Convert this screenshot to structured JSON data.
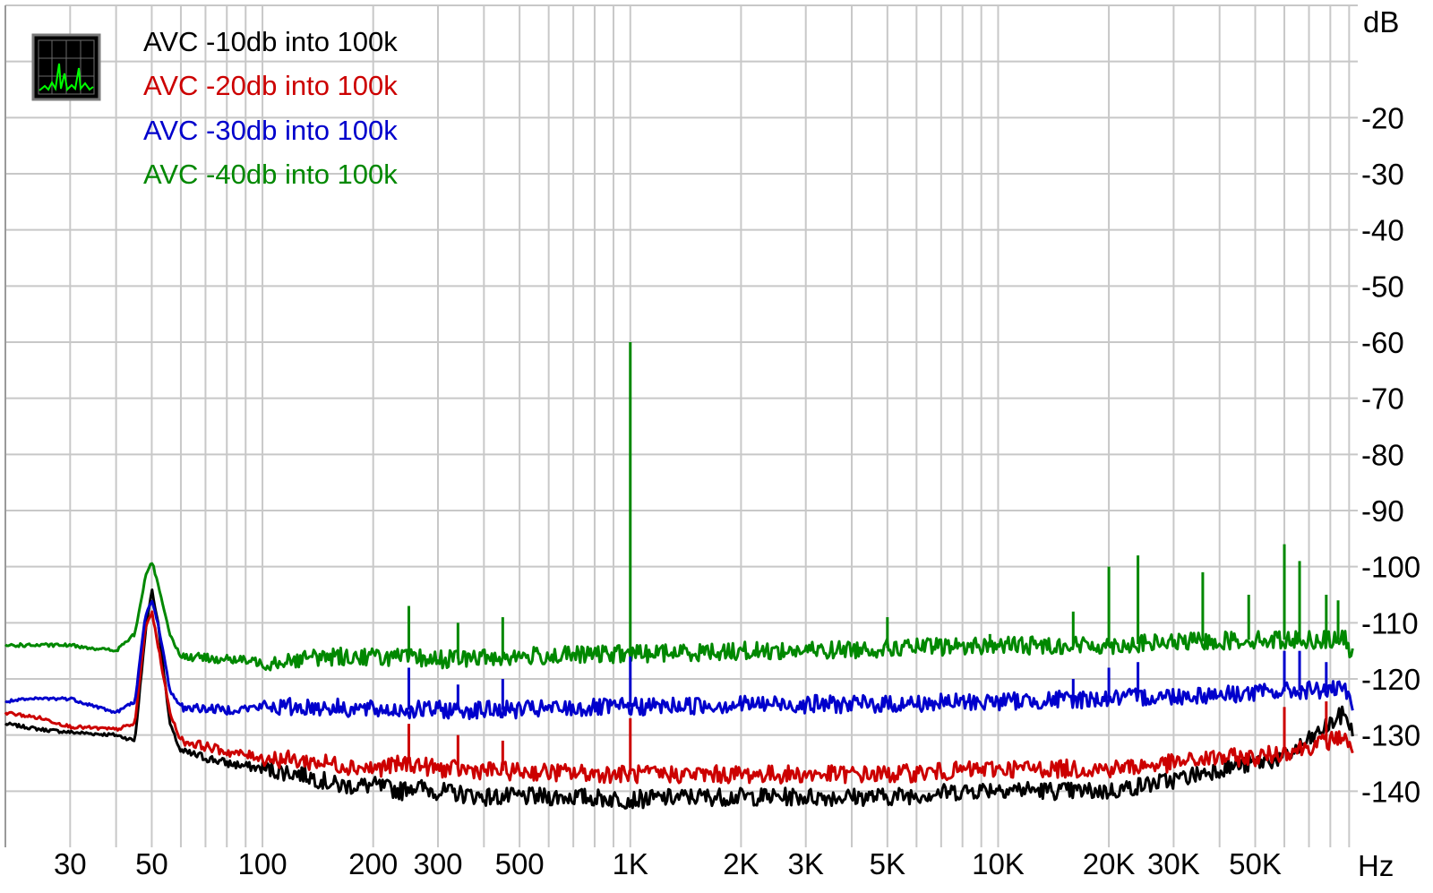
{
  "chart_data": {
    "type": "line",
    "title": "",
    "xlabel": "Hz",
    "ylabel": "dB",
    "xscale": "log",
    "xlim": [
      20,
      95000
    ],
    "ylim": [
      -150,
      0
    ],
    "grid": true,
    "legend_position": "top-left",
    "x_tick_labels": [
      {
        "value": 30,
        "label": "30"
      },
      {
        "value": 50,
        "label": "50"
      },
      {
        "value": 100,
        "label": "100"
      },
      {
        "value": 200,
        "label": "200"
      },
      {
        "value": 300,
        "label": "300"
      },
      {
        "value": 500,
        "label": "500"
      },
      {
        "value": 1000,
        "label": "1K"
      },
      {
        "value": 2000,
        "label": "2K"
      },
      {
        "value": 3000,
        "label": "3K"
      },
      {
        "value": 5000,
        "label": "5K"
      },
      {
        "value": 10000,
        "label": "10K"
      },
      {
        "value": 20000,
        "label": "20K"
      },
      {
        "value": 30000,
        "label": "30K"
      },
      {
        "value": 50000,
        "label": "50K"
      }
    ],
    "y_tick_labels": [
      {
        "value": -20,
        "label": "-20"
      },
      {
        "value": -30,
        "label": "-30"
      },
      {
        "value": -40,
        "label": "-40"
      },
      {
        "value": -50,
        "label": "-50"
      },
      {
        "value": -60,
        "label": "-60"
      },
      {
        "value": -70,
        "label": "-70"
      },
      {
        "value": -80,
        "label": "-80"
      },
      {
        "value": -90,
        "label": "-90"
      },
      {
        "value": -100,
        "label": "-100"
      },
      {
        "value": -110,
        "label": "-110"
      },
      {
        "value": -120,
        "label": "-120"
      },
      {
        "value": -130,
        "label": "-130"
      },
      {
        "value": -140,
        "label": "-140"
      }
    ],
    "series": [
      {
        "name": "AVC -10db into 100k",
        "color": "#000000",
        "points": [
          [
            20,
            -128
          ],
          [
            25,
            -129
          ],
          [
            30,
            -129.5
          ],
          [
            40,
            -130
          ],
          [
            45,
            -131
          ],
          [
            48,
            -112
          ],
          [
            50,
            -104
          ],
          [
            52,
            -110
          ],
          [
            56,
            -128
          ],
          [
            60,
            -133
          ],
          [
            70,
            -134
          ],
          [
            80,
            -135
          ],
          [
            100,
            -136
          ],
          [
            130,
            -137
          ],
          [
            160,
            -139
          ],
          [
            200,
            -139
          ],
          [
            240,
            -140
          ],
          [
            250,
            -139
          ],
          [
            300,
            -140
          ],
          [
            400,
            -141
          ],
          [
            500,
            -141
          ],
          [
            700,
            -141
          ],
          [
            1000,
            -141.5
          ],
          [
            1500,
            -141
          ],
          [
            2000,
            -141
          ],
          [
            3000,
            -141
          ],
          [
            5000,
            -141
          ],
          [
            8000,
            -140
          ],
          [
            10000,
            -139.5
          ],
          [
            15000,
            -140
          ],
          [
            20000,
            -140
          ],
          [
            30000,
            -138
          ],
          [
            40000,
            -136
          ],
          [
            50000,
            -135
          ],
          [
            60000,
            -134
          ],
          [
            70000,
            -131
          ],
          [
            80000,
            -128
          ],
          [
            88000,
            -126
          ],
          [
            92000,
            -130
          ]
        ]
      },
      {
        "name": "AVC -20db into 100k",
        "color": "#cc0000",
        "points": [
          [
            20,
            -126
          ],
          [
            25,
            -127
          ],
          [
            30,
            -128.5
          ],
          [
            40,
            -129
          ],
          [
            45,
            -128
          ],
          [
            48,
            -111
          ],
          [
            50,
            -108
          ],
          [
            52,
            -114
          ],
          [
            56,
            -126
          ],
          [
            60,
            -131
          ],
          [
            70,
            -132
          ],
          [
            80,
            -133
          ],
          [
            100,
            -134
          ],
          [
            150,
            -135
          ],
          [
            200,
            -136
          ],
          [
            250,
            -135
          ],
          [
            300,
            -136
          ],
          [
            500,
            -136.5
          ],
          [
            1000,
            -137
          ],
          [
            2000,
            -137
          ],
          [
            5000,
            -137
          ],
          [
            10000,
            -136
          ],
          [
            20000,
            -136
          ],
          [
            30000,
            -135
          ],
          [
            40000,
            -134
          ],
          [
            50000,
            -134
          ],
          [
            60000,
            -133
          ],
          [
            70000,
            -132
          ],
          [
            80000,
            -131
          ],
          [
            88000,
            -130
          ],
          [
            92000,
            -134
          ]
        ]
      },
      {
        "name": "AVC -30db into 100k",
        "color": "#0000cc",
        "points": [
          [
            20,
            -124
          ],
          [
            25,
            -123.5
          ],
          [
            30,
            -123.5
          ],
          [
            40,
            -126
          ],
          [
            45,
            -124
          ],
          [
            48,
            -109
          ],
          [
            50,
            -106
          ],
          [
            52,
            -110
          ],
          [
            56,
            -122
          ],
          [
            60,
            -125
          ],
          [
            80,
            -125.5
          ],
          [
            100,
            -125
          ],
          [
            150,
            -125
          ],
          [
            200,
            -125.5
          ],
          [
            300,
            -125.5
          ],
          [
            500,
            -125.5
          ],
          [
            1000,
            -125
          ],
          [
            2000,
            -124.5
          ],
          [
            3000,
            -124.5
          ],
          [
            5000,
            -124.5
          ],
          [
            10000,
            -124
          ],
          [
            20000,
            -123.5
          ],
          [
            30000,
            -123
          ],
          [
            50000,
            -122.5
          ],
          [
            70000,
            -122
          ],
          [
            88000,
            -122
          ],
          [
            92000,
            -126
          ]
        ]
      },
      {
        "name": "AVC -40db into 100k",
        "color": "#008800",
        "points": [
          [
            20,
            -114
          ],
          [
            25,
            -114
          ],
          [
            30,
            -114
          ],
          [
            40,
            -115
          ],
          [
            45,
            -112
          ],
          [
            48,
            -102
          ],
          [
            50,
            -99
          ],
          [
            52,
            -103
          ],
          [
            56,
            -112
          ],
          [
            60,
            -116
          ],
          [
            80,
            -116.5
          ],
          [
            100,
            -117
          ],
          [
            150,
            -116
          ],
          [
            200,
            -116
          ],
          [
            300,
            -116.5
          ],
          [
            500,
            -116
          ],
          [
            1000,
            -115.5
          ],
          [
            2000,
            -115
          ],
          [
            3000,
            -115
          ],
          [
            5000,
            -114.5
          ],
          [
            10000,
            -114
          ],
          [
            20000,
            -114
          ],
          [
            30000,
            -113.5
          ],
          [
            50000,
            -113
          ],
          [
            70000,
            -113
          ],
          [
            88000,
            -113
          ],
          [
            92000,
            -116
          ]
        ]
      }
    ],
    "spikes": [
      {
        "series": "AVC -40db into 100k",
        "x": 250,
        "y": -107
      },
      {
        "series": "AVC -40db into 100k",
        "x": 340,
        "y": -110
      },
      {
        "series": "AVC -40db into 100k",
        "x": 450,
        "y": -109
      },
      {
        "series": "AVC -40db into 100k",
        "x": 1000,
        "y": -60
      },
      {
        "series": "AVC -40db into 100k",
        "x": 5000,
        "y": -109
      },
      {
        "series": "AVC -40db into 100k",
        "x": 9500,
        "y": -112
      },
      {
        "series": "AVC -40db into 100k",
        "x": 16000,
        "y": -108
      },
      {
        "series": "AVC -40db into 100k",
        "x": 20000,
        "y": -100
      },
      {
        "series": "AVC -40db into 100k",
        "x": 24000,
        "y": -98
      },
      {
        "series": "AVC -40db into 100k",
        "x": 36000,
        "y": -101
      },
      {
        "series": "AVC -40db into 100k",
        "x": 48000,
        "y": -105
      },
      {
        "series": "AVC -40db into 100k",
        "x": 60000,
        "y": -96
      },
      {
        "series": "AVC -40db into 100k",
        "x": 66000,
        "y": -99
      },
      {
        "series": "AVC -40db into 100k",
        "x": 78000,
        "y": -105
      },
      {
        "series": "AVC -40db into 100k",
        "x": 84000,
        "y": -106
      },
      {
        "series": "AVC -30db into 100k",
        "x": 250,
        "y": -118
      },
      {
        "series": "AVC -30db into 100k",
        "x": 340,
        "y": -121
      },
      {
        "series": "AVC -30db into 100k",
        "x": 450,
        "y": -120
      },
      {
        "series": "AVC -30db into 100k",
        "x": 1000,
        "y": -116
      },
      {
        "series": "AVC -30db into 100k",
        "x": 16000,
        "y": -120
      },
      {
        "series": "AVC -30db into 100k",
        "x": 20000,
        "y": -118
      },
      {
        "series": "AVC -30db into 100k",
        "x": 24000,
        "y": -117
      },
      {
        "series": "AVC -30db into 100k",
        "x": 60000,
        "y": -115
      },
      {
        "series": "AVC -30db into 100k",
        "x": 66000,
        "y": -115
      },
      {
        "series": "AVC -30db into 100k",
        "x": 78000,
        "y": -117
      },
      {
        "series": "AVC -20db into 100k",
        "x": 250,
        "y": -128
      },
      {
        "series": "AVC -20db into 100k",
        "x": 340,
        "y": -130
      },
      {
        "series": "AVC -20db into 100k",
        "x": 450,
        "y": -131
      },
      {
        "series": "AVC -20db into 100k",
        "x": 1000,
        "y": -127
      },
      {
        "series": "AVC -20db into 100k",
        "x": 60000,
        "y": -125
      },
      {
        "series": "AVC -20db into 100k",
        "x": 78000,
        "y": -124
      }
    ]
  }
}
